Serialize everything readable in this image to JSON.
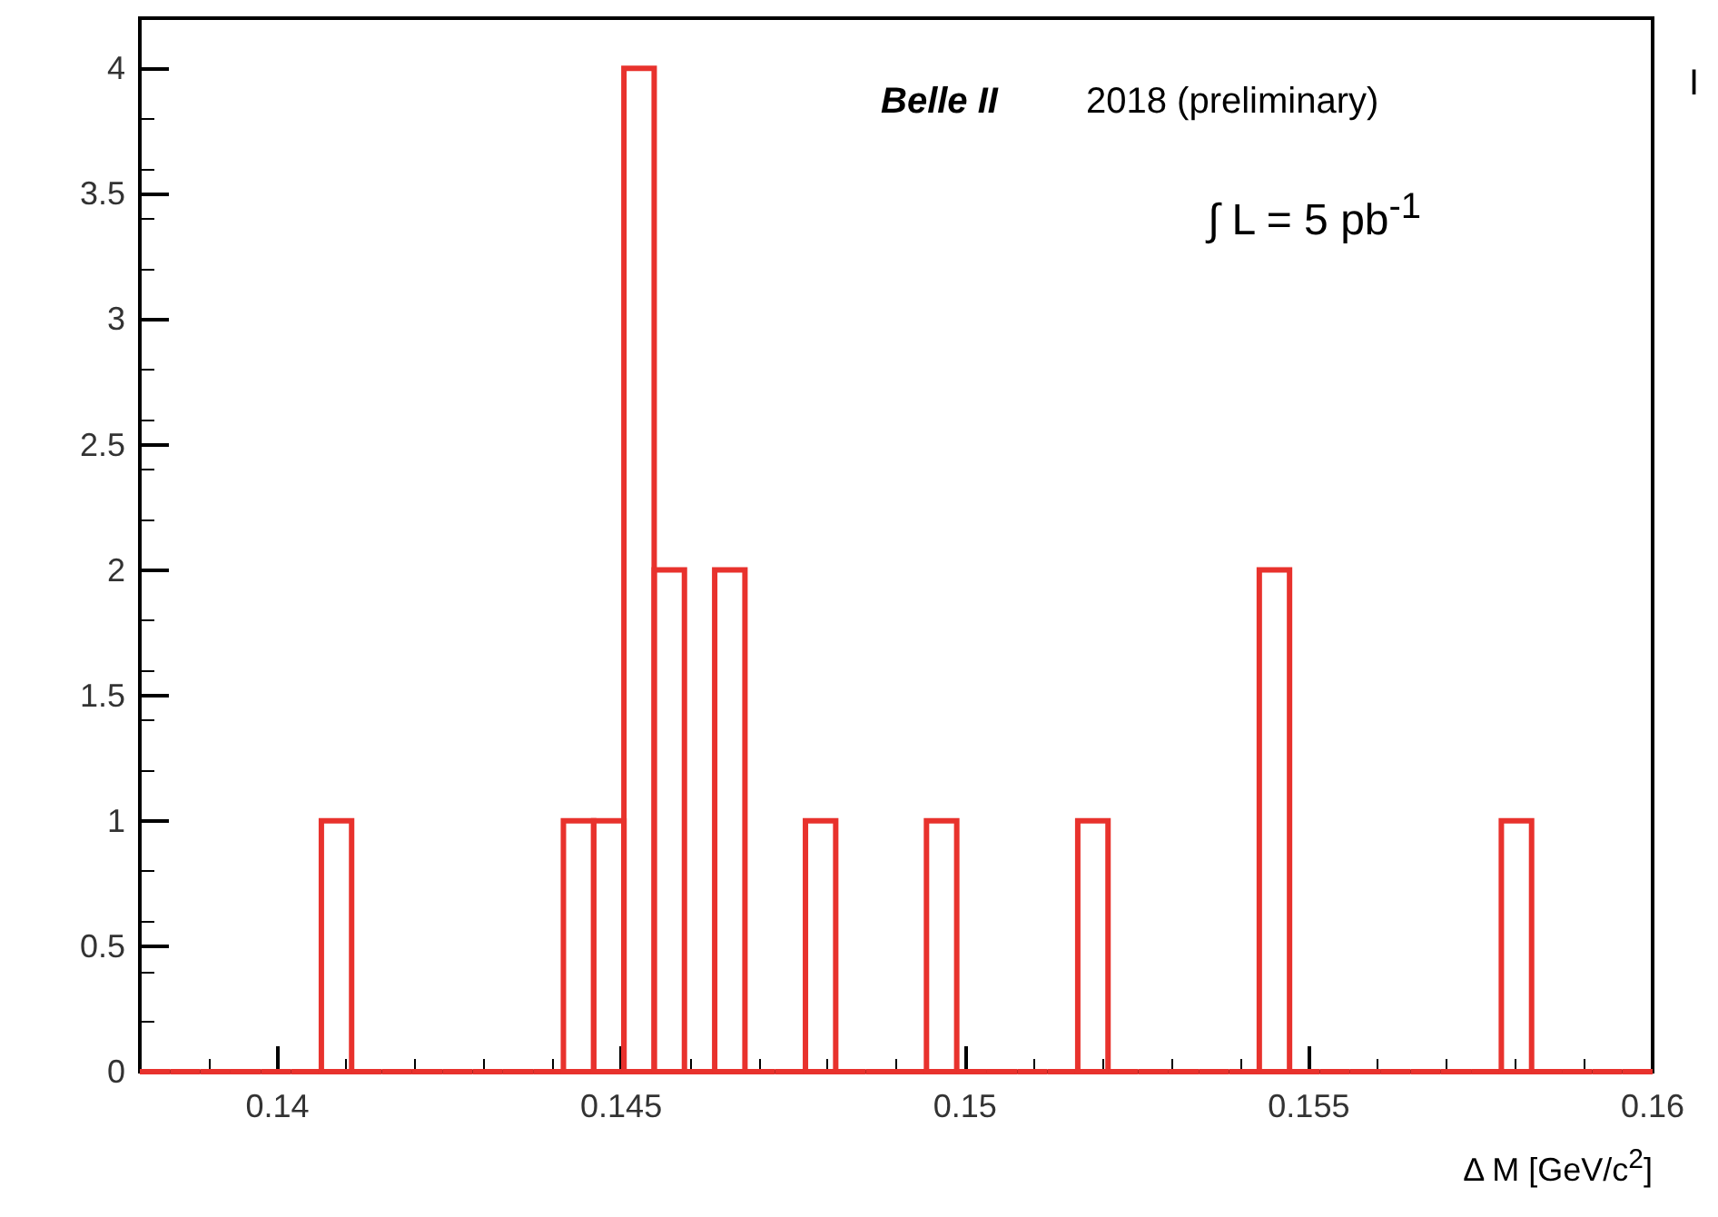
{
  "chart_data": {
    "type": "histogram",
    "xlabel": "Δ M [GeV/c$^{2}$]",
    "annotations": [
      "Belle II",
      "2018 (preliminary)",
      "∫ L = 5 pb$^{-1}$",
      "I"
    ],
    "bins": [
      0.138,
      0.13844,
      0.13888,
      0.13932,
      0.13976,
      0.1402,
      0.14064,
      0.14108,
      0.14152,
      0.14196,
      0.1424,
      0.14284,
      0.14328,
      0.14372,
      0.14416,
      0.1446,
      0.14504,
      0.14548,
      0.14592,
      0.14636,
      0.1468,
      0.14724,
      0.14768,
      0.14812,
      0.14856,
      0.149,
      0.14944,
      0.14988,
      0.15032,
      0.15076,
      0.1512,
      0.15164,
      0.15208,
      0.15252,
      0.15296,
      0.1534,
      0.15384,
      0.15428,
      0.15472,
      0.15516,
      0.1556,
      0.15604,
      0.15648,
      0.15692,
      0.15736,
      0.1578,
      0.15824,
      0.15868,
      0.15912,
      0.15956,
      0.16
    ],
    "values": [
      0,
      0,
      0,
      0,
      0,
      0,
      1,
      0,
      0,
      0,
      0,
      0,
      0,
      0,
      1,
      1,
      4,
      2,
      0,
      2,
      0,
      0,
      1,
      0,
      0,
      0,
      1,
      0,
      0,
      0,
      0,
      1,
      0,
      0,
      0,
      0,
      0,
      2,
      0,
      0,
      0,
      0,
      0,
      0,
      0,
      1,
      0,
      0,
      0,
      0
    ],
    "color": "#e8322d",
    "xlim": [
      0.138,
      0.16
    ],
    "xticks": [
      0.14,
      0.145,
      0.15,
      0.155,
      0.16
    ],
    "ylim": [
      0,
      4.2
    ],
    "yticks": [
      0,
      0.5,
      1,
      1.5,
      2,
      2.5,
      3,
      3.5,
      4
    ],
    "grid": false
  }
}
